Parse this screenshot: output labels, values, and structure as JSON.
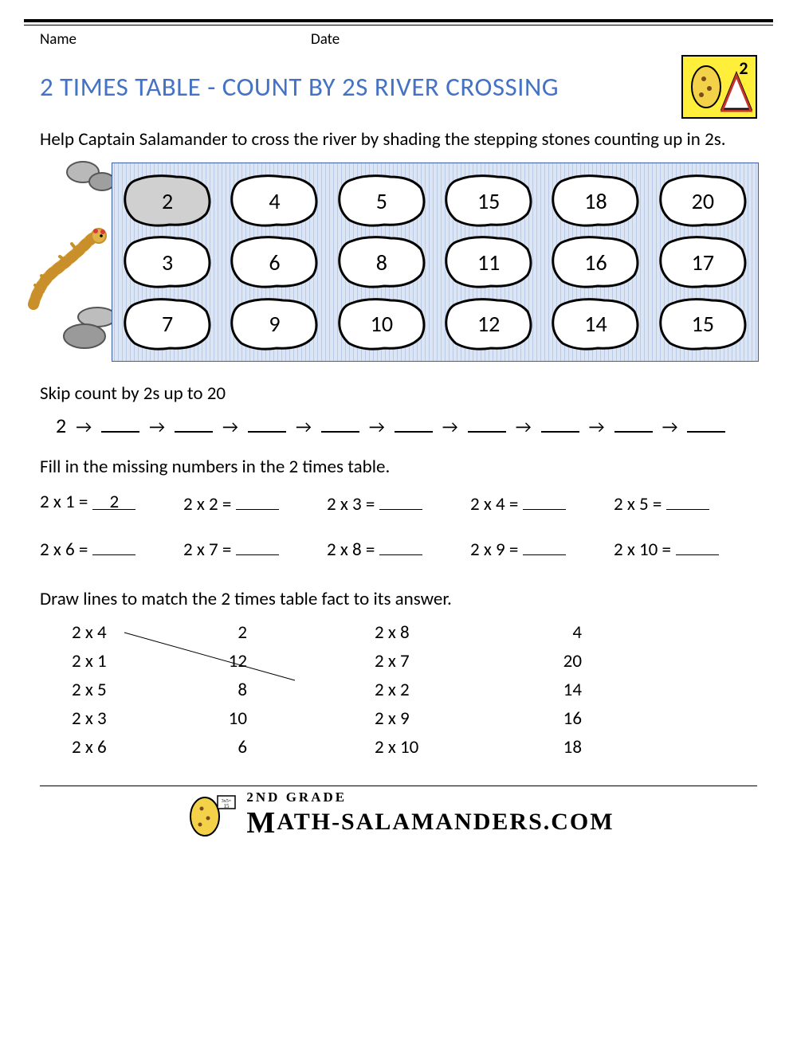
{
  "header": {
    "name_label": "Name",
    "date_label": "Date"
  },
  "title": "2 TIMES TABLE - COUNT BY 2S RIVER CROSSING",
  "title_color": "#4472c4",
  "logo": {
    "badge_number": "2",
    "bg": "#ffef3a",
    "border": "#000000"
  },
  "instructions": "Help Captain Salamander to cross the river by shading the stepping stones counting up in 2s.",
  "river": {
    "bg_pattern_colors": [
      "#dbe5f4",
      "#b9cbe9"
    ],
    "border_color": "#3a5fa8",
    "rows": 3,
    "cols": 6,
    "stones": [
      [
        "2",
        "4",
        "5",
        "15",
        "18",
        "20"
      ],
      [
        "3",
        "6",
        "8",
        "11",
        "16",
        "17"
      ],
      [
        "7",
        "9",
        "10",
        "12",
        "14",
        "15"
      ]
    ],
    "shaded": [
      [
        0,
        0
      ]
    ],
    "stone_fill": "#ffffff",
    "stone_shaded_fill": "#d0d0d0",
    "stone_stroke": "#000000",
    "stone_font_size": 28
  },
  "rocks_left": true,
  "skip_count": {
    "label": "Skip count by 2s up to 20",
    "start": "2",
    "blanks": 9,
    "arrow_glyph": "→"
  },
  "fill_times": {
    "label": "Fill in the missing numbers in the 2 times table.",
    "items": [
      {
        "q": "2 x 1 =",
        "a": "2"
      },
      {
        "q": "2 x 2 =",
        "a": ""
      },
      {
        "q": "2 x 3 =",
        "a": ""
      },
      {
        "q": "2 x 4 =",
        "a": ""
      },
      {
        "q": "2 x 5 =",
        "a": ""
      },
      {
        "q": "2 x 6 =",
        "a": ""
      },
      {
        "q": "2 x 7 =",
        "a": ""
      },
      {
        "q": "2 x 8 =",
        "a": ""
      },
      {
        "q": "2 x 9 =",
        "a": ""
      },
      {
        "q": "2 x 10 =",
        "a": ""
      }
    ]
  },
  "match": {
    "label": "Draw lines to match the 2 times table fact to its answer.",
    "left_facts": [
      "2 x 4",
      "2 x 1",
      "2 x 5",
      "2 x 3",
      "2 x 6"
    ],
    "left_answers": [
      "2",
      "12",
      "8",
      "10",
      "6"
    ],
    "right_facts": [
      "2 x 8",
      "2 x 7",
      "2 x 2",
      "2 x 9",
      "2 x 10"
    ],
    "right_answers": [
      "4",
      "20",
      "14",
      "16",
      "18"
    ],
    "example_line": {
      "from_row": 0,
      "to_row": 2
    }
  },
  "footer": {
    "grade_text": "2ND GRADE",
    "site_text": "ATH-SALAMANDERS.COM",
    "site_prefix_glyph": "M"
  },
  "fonts": {
    "body": "Calibri",
    "body_size": 23,
    "title_size": 33
  },
  "colors": {
    "text": "#000000",
    "rule": "#000000",
    "background": "#ffffff"
  }
}
